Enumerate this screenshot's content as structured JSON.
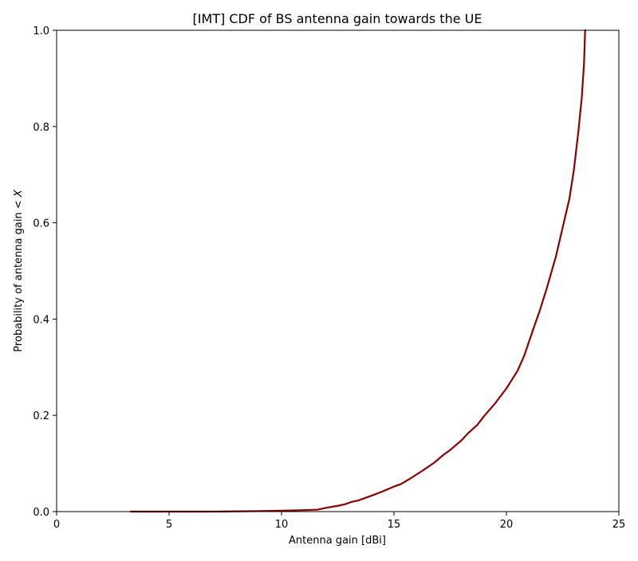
{
  "chart_data": {
    "type": "line",
    "title": "[IMT] CDF of BS antenna gain towards the UE",
    "xlabel": "Antenna gain [dBi]",
    "ylabel_prefix": "Probability of antenna gain < ",
    "ylabel_var": "X",
    "xlim": [
      0,
      25
    ],
    "ylim": [
      0,
      1
    ],
    "xticks": [
      0,
      5,
      10,
      15,
      20,
      25
    ],
    "xtick_labels": [
      "0",
      "5",
      "10",
      "15",
      "20",
      "25"
    ],
    "yticks": [
      0,
      0.2,
      0.4,
      0.6,
      0.8,
      1.0
    ],
    "ytick_labels": [
      "0.0",
      "0.2",
      "0.4",
      "0.6",
      "0.8",
      "1.0"
    ],
    "grid": false,
    "legend": "none",
    "series": [
      {
        "color": "#8b0000",
        "x": [
          3.3,
          5,
          7,
          9,
          10,
          11,
          11.6,
          12,
          12.5,
          12.8,
          13.1,
          13.4,
          13.7,
          14,
          14.5,
          15,
          15.3,
          15.7,
          16,
          16.3,
          16.8,
          17.2,
          17.5,
          18,
          18.3,
          18.7,
          19,
          19.5,
          20,
          20.5,
          20.8,
          21.2,
          21.5,
          21.8,
          22.2,
          22.5,
          22.8,
          23,
          23.2,
          23.35,
          23.45,
          23.5
        ],
        "y": [
          0.0,
          0.0,
          0.0,
          0.001,
          0.002,
          0.003,
          0.004,
          0.008,
          0.012,
          0.015,
          0.02,
          0.023,
          0.028,
          0.033,
          0.042,
          0.052,
          0.057,
          0.068,
          0.077,
          0.086,
          0.102,
          0.118,
          0.128,
          0.148,
          0.163,
          0.18,
          0.198,
          0.225,
          0.256,
          0.293,
          0.325,
          0.38,
          0.42,
          0.465,
          0.53,
          0.59,
          0.65,
          0.71,
          0.79,
          0.86,
          0.93,
          1.0
        ]
      }
    ]
  }
}
